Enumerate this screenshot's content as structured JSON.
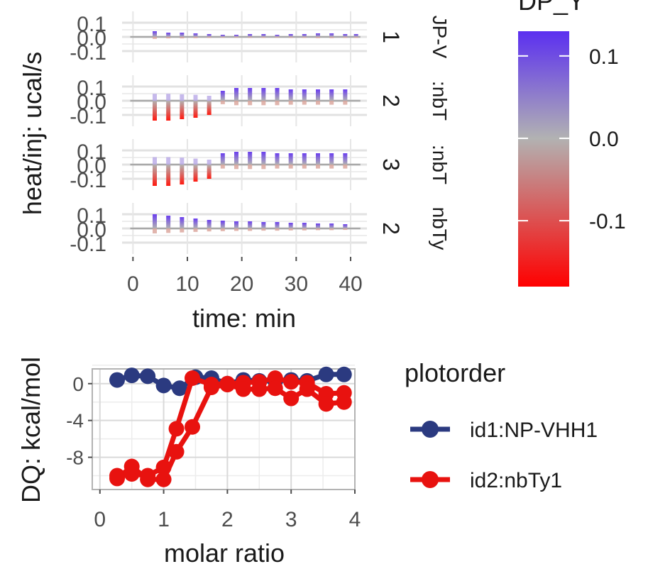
{
  "chart_data": [
    {
      "type": "bar",
      "panel": "thermogram",
      "ylabel": "heat/inj: ucal/s",
      "xlabel": "time: min",
      "xlim": [
        -2,
        43
      ],
      "ylim": [
        -0.18,
        0.18
      ],
      "xticks": [
        "0",
        "10",
        "20",
        "30",
        "40"
      ],
      "xtick_values": [
        0,
        10,
        20,
        30,
        40
      ],
      "yticks": [
        "0.1",
        "0.0",
        "-0.1"
      ],
      "ytick_values": [
        0.1,
        0.0,
        -0.1
      ],
      "facets": [
        {
          "strip": "1",
          "strip_text": "JP-V",
          "injection_times": [
            4,
            6.5,
            9,
            11.5,
            14,
            16.5,
            19,
            21.5,
            24,
            26.5,
            29,
            31.5,
            34,
            36.5,
            39,
            41
          ],
          "injection_peaks": [
            0.04,
            0.03,
            0.03,
            0.025,
            0.02,
            0.015,
            0.015,
            0.02,
            0.02,
            0.015,
            0.02,
            0.02,
            0.025,
            0.025,
            0.02,
            0.02
          ]
        },
        {
          "strip": "2",
          "strip_text": ":nbT",
          "injection_times": [
            4,
            6.5,
            9,
            11.5,
            14,
            16.5,
            19,
            21.5,
            24,
            26.5,
            29,
            31.5,
            34,
            36.5,
            39
          ],
          "injection_peaks": [
            -0.14,
            -0.14,
            -0.13,
            -0.12,
            -0.1,
            0.07,
            0.09,
            0.09,
            0.09,
            0.09,
            0.08,
            0.08,
            0.08,
            0.08,
            0.08
          ]
        },
        {
          "strip": "3",
          "strip_text": ":nbT",
          "injection_times": [
            4,
            6.5,
            9,
            11.5,
            14,
            16.5,
            19,
            21.5,
            24,
            26.5,
            29,
            31.5,
            34,
            36.5,
            39
          ],
          "injection_peaks": [
            -0.15,
            -0.15,
            -0.14,
            -0.12,
            -0.1,
            0.08,
            0.09,
            0.09,
            0.09,
            0.08,
            0.08,
            0.08,
            0.08,
            0.08,
            0.08
          ]
        },
        {
          "strip": "2",
          "strip_text": "nbTy",
          "injection_times": [
            4,
            6.5,
            9,
            11.5,
            14,
            16.5,
            19,
            21.5,
            24,
            26.5,
            29,
            31.5,
            34,
            36.5,
            39
          ],
          "injection_peaks": [
            0.1,
            0.09,
            0.08,
            0.07,
            0.06,
            0.055,
            0.05,
            0.05,
            0.045,
            0.045,
            0.04,
            0.04,
            0.035,
            0.035,
            0.03
          ]
        }
      ],
      "colorbar": {
        "title": "DP_Y",
        "ticks": [
          "0.1",
          "0.0",
          "-0.1"
        ],
        "tick_values": [
          0.1,
          0.0,
          -0.1
        ],
        "range": [
          -0.18,
          0.13
        ],
        "colors": [
          "#ff0000",
          "#b2b2b2",
          "#5b2ff0"
        ]
      }
    },
    {
      "type": "scatter",
      "panel": "isotherm",
      "xlabel": "molar ratio",
      "ylabel": "DQ: kcal/mol",
      "xlim": [
        -0.12,
        4.0
      ],
      "ylim": [
        -11.5,
        1.6
      ],
      "xticks": [
        "0",
        "1",
        "2",
        "3",
        "4"
      ],
      "xtick_values": [
        0,
        1,
        2,
        3,
        4
      ],
      "yticks": [
        "0",
        "-4",
        "-8"
      ],
      "ytick_values": [
        0,
        -4,
        -8
      ],
      "grid": true,
      "legend": {
        "title": "plotorder",
        "placement": "right"
      },
      "series": [
        {
          "name": "id1:NP-VHH1",
          "color": "#2b3a80",
          "lines": [
            {
              "x": [
                0.27,
                0.5,
                0.75,
                1.0,
                1.25,
                1.5,
                1.75,
                2.0,
                2.25,
                2.5,
                2.75,
                3.0,
                3.25,
                3.55,
                3.83
              ],
              "y": [
                0.4,
                0.9,
                0.8,
                -0.2,
                -0.5,
                0.7,
                0.6,
                0.0,
                0.4,
                0.3,
                0.3,
                0.4,
                0.3,
                1.0,
                1.0
              ]
            }
          ]
        },
        {
          "name": "id2:nbTy1",
          "color": "#e8120f",
          "lines": [
            {
              "x": [
                0.27,
                0.5,
                0.75,
                1.0,
                1.2,
                1.45,
                1.75,
                2.0,
                2.25,
                2.5,
                2.75,
                3.0,
                3.25,
                3.55,
                3.83
              ],
              "y": [
                -10.0,
                -9.8,
                -10.0,
                -9.1,
                -4.9,
                0.6,
                -0.1,
                0.0,
                0.1,
                0.2,
                0.6,
                0.2,
                0.1,
                -1.1,
                -1.0
              ]
            },
            {
              "x": [
                0.27,
                0.5,
                0.75,
                1.0,
                1.2,
                1.45,
                1.75,
                2.0,
                2.25,
                2.5,
                2.75,
                3.0,
                3.25,
                3.55,
                3.83
              ],
              "y": [
                -10.3,
                -9.0,
                -10.4,
                -10.4,
                -7.4,
                -4.7,
                -0.4,
                -0.1,
                -0.6,
                -0.6,
                -0.5,
                -1.6,
                -0.6,
                -2.2,
                -2.0
              ]
            }
          ]
        }
      ]
    }
  ]
}
